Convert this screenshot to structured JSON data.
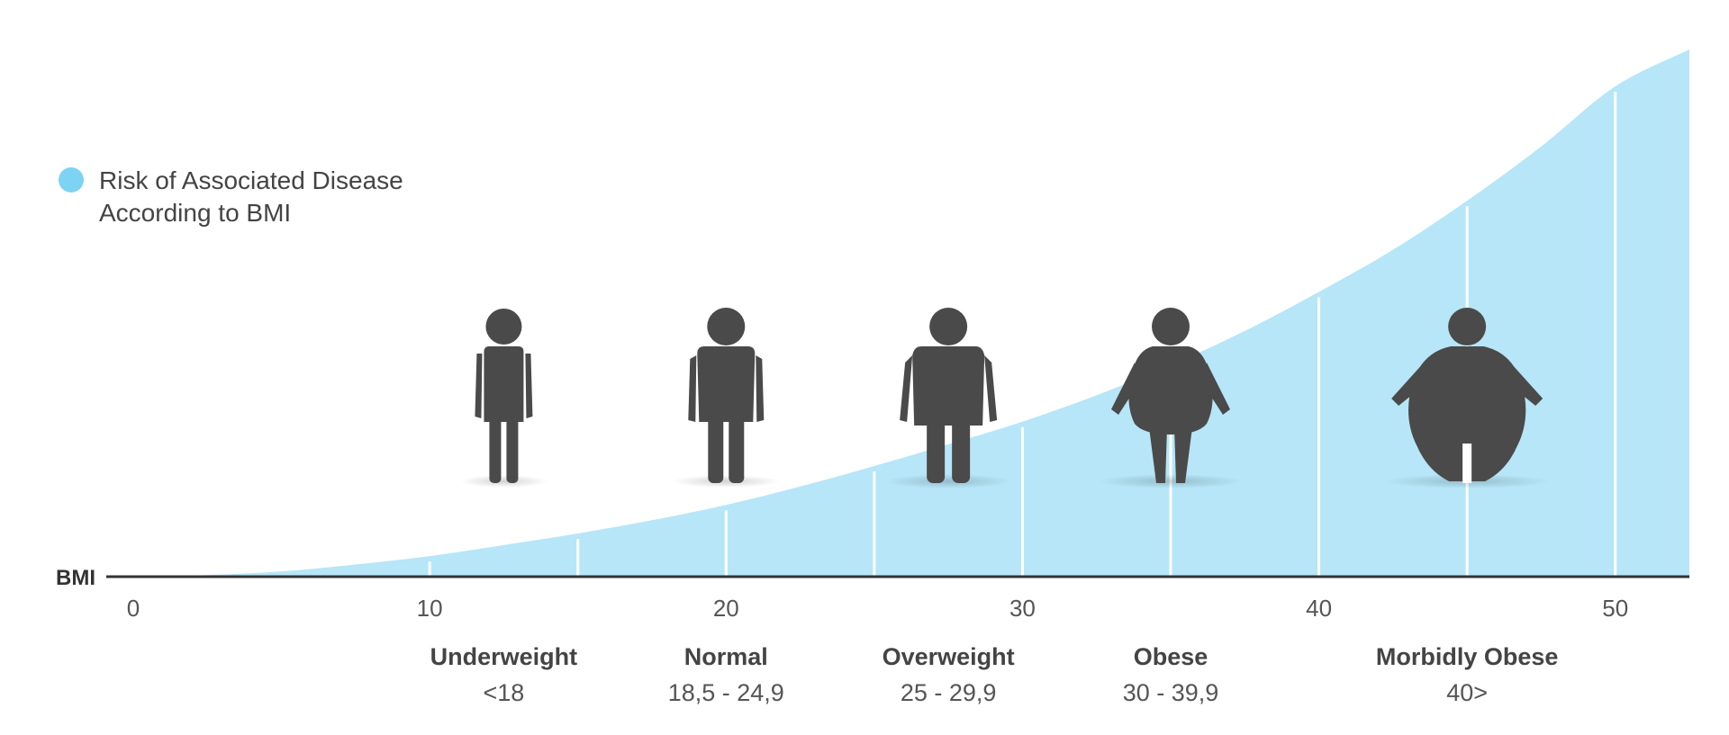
{
  "chart_data": {
    "type": "area",
    "xlabel": "BMI",
    "ylabel": "",
    "xlim": [
      0,
      52.5
    ],
    "ylim": [
      0,
      100
    ],
    "x_ticks": [
      0,
      10,
      20,
      30,
      40,
      50
    ],
    "x": [
      0,
      2.5,
      5,
      7.5,
      10,
      12.5,
      15,
      17.5,
      20,
      22.5,
      25,
      27.5,
      30,
      32.5,
      35,
      37.5,
      40,
      42.5,
      45,
      47.5,
      50,
      52.5
    ],
    "series": [
      {
        "name": "Risk of Associated Disease According to BMI",
        "values": [
          0,
          0.3,
          1.0,
          2.3,
          3.9,
          6.0,
          8.2,
          10.7,
          13.6,
          17.1,
          21.0,
          25.1,
          29.4,
          34.4,
          40.1,
          46.6,
          54.0,
          62.0,
          71.3,
          81.6,
          93.0,
          100
        ]
      }
    ],
    "gridlines_x": [
      5,
      10,
      15,
      20,
      25,
      30,
      35,
      40,
      45,
      50
    ],
    "legend": {
      "position": "top-left",
      "labels": [
        "Risk of Associated Disease",
        "According to BMI"
      ]
    },
    "categories": [
      {
        "name": "Underweight",
        "range": "<18",
        "center": 12.5,
        "icon": "underweight-person-icon"
      },
      {
        "name": "Normal",
        "range": "18,5 - 24,9",
        "center": 20,
        "icon": "normal-person-icon"
      },
      {
        "name": "Overweight",
        "range": "25 - 29,9",
        "center": 27.5,
        "icon": "overweight-person-icon"
      },
      {
        "name": "Obese",
        "range": "30 - 39,9",
        "center": 35,
        "icon": "obese-person-icon"
      },
      {
        "name": "Morbidly Obese",
        "range": "40>",
        "center": 45,
        "icon": "morbidly-obese-person-icon"
      }
    ],
    "colors": {
      "area": "#b6e6f8",
      "legend_dot": "#7dd3f3",
      "axis": "#333333",
      "figure": "#4a4a4a",
      "gridline": "#ffffff"
    }
  }
}
